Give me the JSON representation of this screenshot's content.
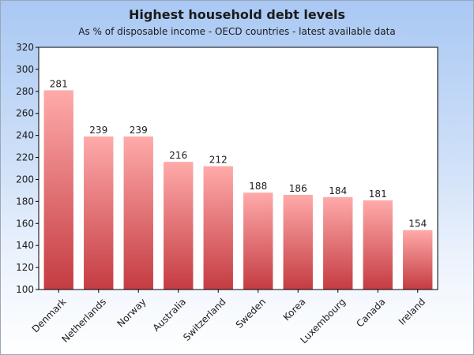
{
  "chart_data": {
    "type": "bar",
    "title": "Highest household debt levels",
    "subtitle": "As % of disposable income - OECD countries - latest available data",
    "xlabel": "",
    "ylabel": "",
    "categories": [
      "Denmark",
      "Netherlands",
      "Norway",
      "Australia",
      "Switzerland",
      "Sweden",
      "Korea",
      "Luxembourg",
      "Canada",
      "Ireland"
    ],
    "values": [
      281,
      239,
      239,
      216,
      212,
      188,
      186,
      184,
      181,
      154
    ],
    "data_labels": [
      "281",
      "239",
      "239",
      "216",
      "212",
      "188",
      "186",
      "184",
      "181",
      "154"
    ],
    "ylim": [
      100,
      320
    ],
    "yticks": [
      100,
      120,
      140,
      160,
      180,
      200,
      220,
      240,
      260,
      280,
      300,
      320
    ],
    "grid": false,
    "legend": "none",
    "colors": {
      "bar_top": "#ffaaaa",
      "bar_bottom": "#c43c42",
      "plot_bg": "#ffffff",
      "page_bg_top": "#a9c8f3",
      "axis": "#000000"
    }
  }
}
